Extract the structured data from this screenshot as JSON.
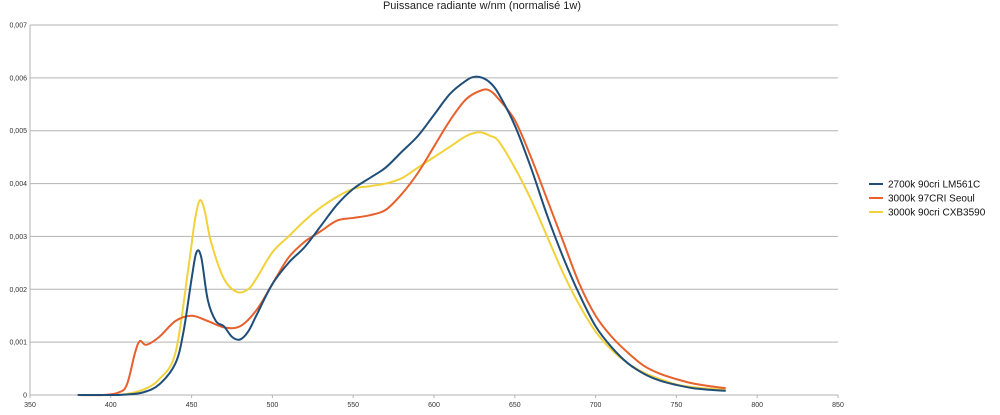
{
  "chart_data": {
    "type": "line",
    "title": "Puissance radiante w/nm (normalisé 1w)",
    "xlabel": "",
    "ylabel": "",
    "xlim": [
      350,
      850
    ],
    "ylim": [
      0,
      0.007
    ],
    "x_ticks": [
      350,
      400,
      450,
      500,
      550,
      600,
      650,
      700,
      750,
      800,
      850
    ],
    "y_ticks": [
      0,
      0.001,
      0.002,
      0.003,
      0.004,
      0.005,
      0.006,
      0.007
    ],
    "x_tick_labels": [
      "350",
      "400",
      "450",
      "500",
      "550",
      "600",
      "650",
      "700",
      "750",
      "800",
      "850"
    ],
    "y_tick_labels": [
      "0",
      "0,001",
      "0,002",
      "0,003",
      "0,004",
      "0,005",
      "0,006",
      "0,007"
    ],
    "grid": true,
    "legend_position": "right",
    "series": [
      {
        "name": "2700k 90cri LM561C",
        "color": "#1f4e79",
        "points": [
          [
            380,
            0
          ],
          [
            400,
            0
          ],
          [
            410,
            1e-05
          ],
          [
            420,
            5e-05
          ],
          [
            430,
            0.0002
          ],
          [
            440,
            0.0006
          ],
          [
            445,
            0.0012
          ],
          [
            450,
            0.0022
          ],
          [
            453,
            0.0027
          ],
          [
            456,
            0.0026
          ],
          [
            460,
            0.0018
          ],
          [
            465,
            0.0014
          ],
          [
            470,
            0.0013
          ],
          [
            475,
            0.0011
          ],
          [
            480,
            0.00105
          ],
          [
            485,
            0.0012
          ],
          [
            490,
            0.0015
          ],
          [
            500,
            0.0021
          ],
          [
            510,
            0.0025
          ],
          [
            520,
            0.0028
          ],
          [
            530,
            0.0032
          ],
          [
            540,
            0.0036
          ],
          [
            550,
            0.0039
          ],
          [
            560,
            0.0041
          ],
          [
            570,
            0.0043
          ],
          [
            580,
            0.0046
          ],
          [
            590,
            0.0049
          ],
          [
            600,
            0.0053
          ],
          [
            610,
            0.0057
          ],
          [
            620,
            0.00595
          ],
          [
            625,
            0.00602
          ],
          [
            630,
            0.006
          ],
          [
            635,
            0.0059
          ],
          [
            640,
            0.0057
          ],
          [
            650,
            0.0051
          ],
          [
            660,
            0.0043
          ],
          [
            670,
            0.0034
          ],
          [
            680,
            0.0026
          ],
          [
            690,
            0.0019
          ],
          [
            700,
            0.0013
          ],
          [
            710,
            0.0009
          ],
          [
            720,
            0.0006
          ],
          [
            730,
            0.0004
          ],
          [
            740,
            0.00027
          ],
          [
            750,
            0.00019
          ],
          [
            760,
            0.00013
          ],
          [
            770,
            0.0001
          ],
          [
            780,
            8e-05
          ]
        ]
      },
      {
        "name": "3000k 97CRI Seoul",
        "color": "#e8602c",
        "points": [
          [
            380,
            0
          ],
          [
            395,
            0
          ],
          [
            405,
            5e-05
          ],
          [
            410,
            0.0002
          ],
          [
            415,
            0.0008
          ],
          [
            418,
            0.00102
          ],
          [
            422,
            0.00095
          ],
          [
            430,
            0.0011
          ],
          [
            440,
            0.0014
          ],
          [
            450,
            0.0015
          ],
          [
            460,
            0.0014
          ],
          [
            470,
            0.00128
          ],
          [
            480,
            0.0013
          ],
          [
            490,
            0.0016
          ],
          [
            500,
            0.0021
          ],
          [
            510,
            0.0026
          ],
          [
            520,
            0.0029
          ],
          [
            530,
            0.0031
          ],
          [
            540,
            0.0033
          ],
          [
            550,
            0.00335
          ],
          [
            560,
            0.0034
          ],
          [
            570,
            0.0035
          ],
          [
            580,
            0.0038
          ],
          [
            590,
            0.0042
          ],
          [
            600,
            0.0047
          ],
          [
            610,
            0.0052
          ],
          [
            620,
            0.0056
          ],
          [
            630,
            0.00577
          ],
          [
            635,
            0.00575
          ],
          [
            640,
            0.0056
          ],
          [
            650,
            0.0052
          ],
          [
            660,
            0.0045
          ],
          [
            670,
            0.0037
          ],
          [
            680,
            0.0029
          ],
          [
            690,
            0.0021
          ],
          [
            700,
            0.0015
          ],
          [
            710,
            0.0011
          ],
          [
            720,
            0.0008
          ],
          [
            730,
            0.00055
          ],
          [
            740,
            0.0004
          ],
          [
            750,
            0.0003
          ],
          [
            760,
            0.00022
          ],
          [
            770,
            0.00017
          ],
          [
            780,
            0.00013
          ]
        ]
      },
      {
        "name": "3000k 90cri CXB3590",
        "color": "#f2d23a",
        "points": [
          [
            380,
            0
          ],
          [
            400,
            0
          ],
          [
            410,
            2e-05
          ],
          [
            420,
            0.0001
          ],
          [
            430,
            0.0003
          ],
          [
            440,
            0.0008
          ],
          [
            448,
            0.0024
          ],
          [
            452,
            0.0033
          ],
          [
            455,
            0.00368
          ],
          [
            458,
            0.0035
          ],
          [
            462,
            0.0029
          ],
          [
            470,
            0.0022
          ],
          [
            478,
            0.00195
          ],
          [
            485,
            0.002
          ],
          [
            490,
            0.0022
          ],
          [
            500,
            0.0027
          ],
          [
            510,
            0.003
          ],
          [
            520,
            0.0033
          ],
          [
            530,
            0.00355
          ],
          [
            540,
            0.00375
          ],
          [
            550,
            0.0039
          ],
          [
            560,
            0.00395
          ],
          [
            570,
            0.004
          ],
          [
            580,
            0.0041
          ],
          [
            590,
            0.0043
          ],
          [
            600,
            0.0045
          ],
          [
            610,
            0.0047
          ],
          [
            620,
            0.0049
          ],
          [
            628,
            0.00497
          ],
          [
            635,
            0.0049
          ],
          [
            640,
            0.0048
          ],
          [
            650,
            0.0043
          ],
          [
            660,
            0.0037
          ],
          [
            670,
            0.003
          ],
          [
            680,
            0.0023
          ],
          [
            690,
            0.0017
          ],
          [
            700,
            0.0012
          ],
          [
            710,
            0.00085
          ],
          [
            720,
            0.0006
          ],
          [
            730,
            0.00042
          ],
          [
            740,
            0.0003
          ],
          [
            750,
            0.0002
          ],
          [
            760,
            0.00015
          ],
          [
            770,
            0.00012
          ],
          [
            780,
            0.0001
          ]
        ]
      }
    ]
  }
}
